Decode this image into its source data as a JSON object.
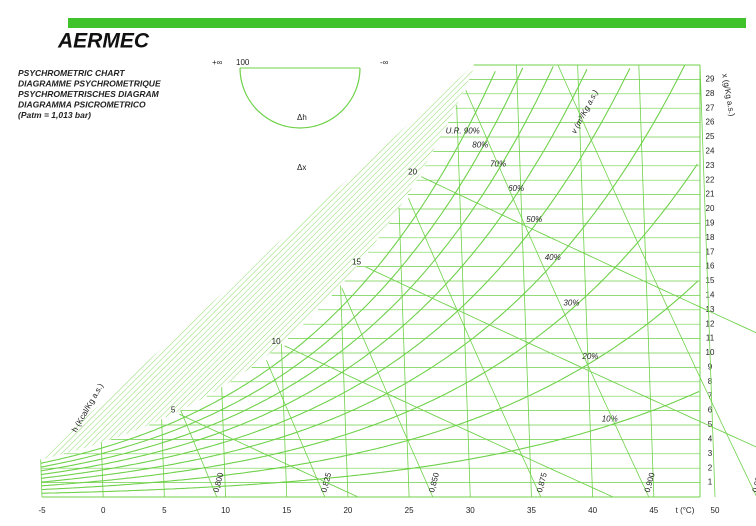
{
  "logo": "AERMEC",
  "title_lines": [
    "PSYCHROMETRIC CHART",
    "DIAGRAMME PSYCHROMETRIQUE",
    "PSYCHROMETRISCHES DIAGRAM",
    "DIAGRAMMA PSICROMETRICO",
    "(Patm = 1,013 bar)"
  ],
  "protractor_labels": [
    "+∞",
    "100",
    "-∞",
    "Δh",
    "Δx"
  ],
  "chart_data": {
    "type": "psychrometric",
    "x_label": "t (°C)",
    "y2_label": "x (g/Kg a.s.)",
    "enthalpy_label": "h (Kcal/Kg a.s.)",
    "volume_label": "v (m³/Kg a.s.)",
    "color": "#6fd14a",
    "xlim": [
      -5,
      50
    ],
    "xticks": [
      -5,
      0,
      5,
      10,
      15,
      20,
      25,
      30,
      35,
      40,
      45,
      50
    ],
    "y2lim": [
      0,
      30
    ],
    "y2ticks": [
      1,
      2,
      3,
      4,
      5,
      6,
      7,
      8,
      9,
      10,
      11,
      12,
      13,
      14,
      15,
      16,
      17,
      18,
      19,
      20,
      21,
      22,
      23,
      24,
      25,
      26,
      27,
      28,
      29
    ],
    "rh_curves": [
      {
        "value": 90,
        "label": "U.R. 90%"
      },
      {
        "value": 80,
        "label": "80%"
      },
      {
        "value": 70,
        "label": "70%"
      },
      {
        "value": 60,
        "label": "60%"
      },
      {
        "value": 50,
        "label": "50%"
      },
      {
        "value": 40,
        "label": "40%"
      },
      {
        "value": 30,
        "label": "30%"
      },
      {
        "value": 20,
        "label": "20%"
      },
      {
        "value": 10,
        "label": "10%"
      }
    ],
    "volume_lines": [
      {
        "value": 0.8,
        "label": "0,800"
      },
      {
        "value": 0.825,
        "label": "0,825"
      },
      {
        "value": 0.85,
        "label": "0,850"
      },
      {
        "value": 0.875,
        "label": "0,875"
      },
      {
        "value": 0.9,
        "label": "0,900"
      },
      {
        "value": 0.925,
        "label": "0,925"
      }
    ],
    "enthalpy_ticks": [
      5,
      10,
      15,
      20,
      25,
      30
    ]
  }
}
